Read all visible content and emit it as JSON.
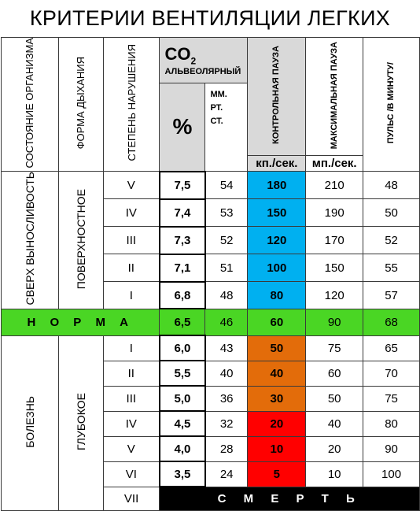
{
  "title": "КРИТЕРИИ ВЕНТИЛЯЦИИ ЛЕГКИХ",
  "headers": {
    "state": "СОСТОЯНИЕ ОРГАНИЗМА",
    "form": "ФОРМА ДЫХАНИЯ",
    "degree": "СТЕПЕНЬ НАРУШЕНИЯ",
    "co2_main": "CO",
    "co2_sub": "2",
    "co2_caption": "АЛЬВЕОЛЯРНЫЙ",
    "percent": "%",
    "mmhg": "ММ. РТ. СТ.",
    "control_pause": "КОНТРОЛЬНАЯ ПАУЗА",
    "control_unit": "кп./сек.",
    "max_pause": "МАКСИМАЛЬНАЯ ПАУЗА",
    "max_unit": "мп./сек.",
    "pulse": "ПУЛЬС /В МИНУТУ/"
  },
  "groups": {
    "super": "СВЕРХ ВЫНОСЛИВОСТЬ",
    "surface": "ПОВЕРХНОСТНОЕ",
    "norm": "Н О Р М А",
    "illness": "БОЛЕЗНЬ",
    "deep": "ГЛУБОКОЕ",
    "death": "С М Е Р Т Ь"
  },
  "rows_super": [
    {
      "degree": "V",
      "pct": "7,5",
      "mm": "54",
      "cp": "180",
      "mp": "210",
      "pulse": "48"
    },
    {
      "degree": "IV",
      "pct": "7,4",
      "mm": "53",
      "cp": "150",
      "mp": "190",
      "pulse": "50"
    },
    {
      "degree": "III",
      "pct": "7,3",
      "mm": "52",
      "cp": "120",
      "mp": "170",
      "pulse": "52"
    },
    {
      "degree": "II",
      "pct": "7,1",
      "mm": "51",
      "cp": "100",
      "mp": "150",
      "pulse": "55"
    },
    {
      "degree": "I",
      "pct": "6,8",
      "mm": "48",
      "cp": "80",
      "mp": "120",
      "pulse": "57"
    }
  ],
  "row_norm": {
    "pct": "6,5",
    "mm": "46",
    "cp": "60",
    "mp": "90",
    "pulse": "68"
  },
  "rows_ill": [
    {
      "degree": "I",
      "pct": "6,0",
      "mm": "43",
      "cp": "50",
      "mp": "75",
      "pulse": "65",
      "color": "orange"
    },
    {
      "degree": "II",
      "pct": "5,5",
      "mm": "40",
      "cp": "40",
      "mp": "60",
      "pulse": "70",
      "color": "orange"
    },
    {
      "degree": "III",
      "pct": "5,0",
      "mm": "36",
      "cp": "30",
      "mp": "50",
      "pulse": "75",
      "color": "orange"
    },
    {
      "degree": "IV",
      "pct": "4,5",
      "mm": "32",
      "cp": "20",
      "mp": "40",
      "pulse": "80",
      "color": "red"
    },
    {
      "degree": "V",
      "pct": "4,0",
      "mm": "28",
      "cp": "10",
      "mp": "20",
      "pulse": "90",
      "color": "red"
    },
    {
      "degree": "VI",
      "pct": "3,5",
      "mm": "24",
      "cp": "5",
      "mp": "10",
      "pulse": "100",
      "color": "red"
    }
  ],
  "row_death_degree": "VII",
  "colors": {
    "blue": "#00b0f0",
    "orange": "#e36c0a",
    "red": "#ff0000",
    "green": "#4ad624",
    "gray": "#d9d9d9",
    "black": "#000000"
  }
}
